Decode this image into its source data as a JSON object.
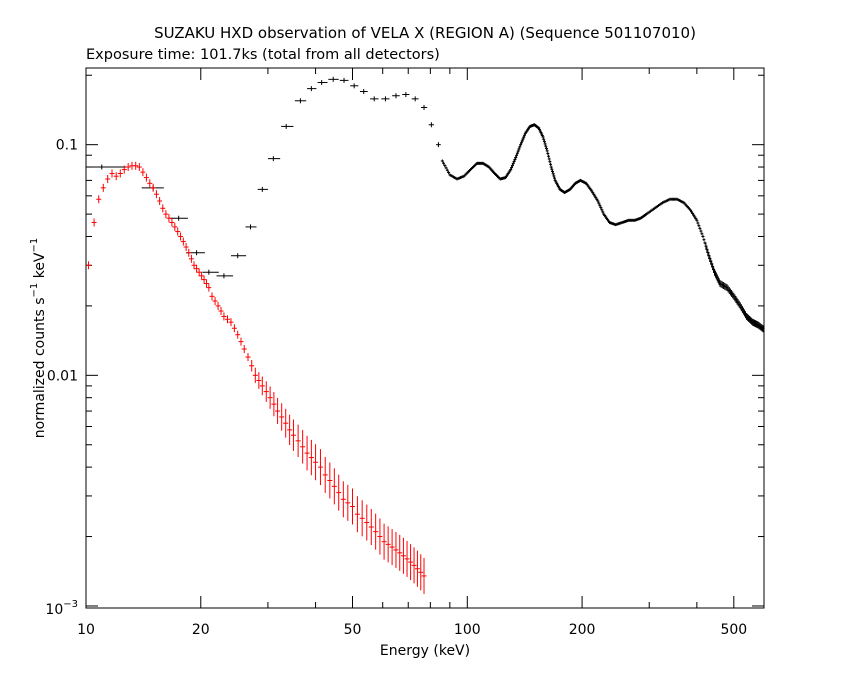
{
  "chart_data": {
    "type": "scatter",
    "title": "SUZAKU HXD observation of VELA X (REGION A) (Sequence 501107010)",
    "subtitle": "Exposure time: 101.7ks (total from all detectors)",
    "xlabel": "Energy (keV)",
    "ylabel_main": "normalized counts s",
    "ylabel_exp1": "−1",
    "ylabel_mid": " keV",
    "ylabel_exp2": "−1",
    "x_scale": "log",
    "y_scale": "log",
    "xlim": [
      10,
      600
    ],
    "ylim": [
      0.00098,
      0.215
    ],
    "x_ticks": [
      {
        "value": 10,
        "label": "10"
      },
      {
        "value": 20,
        "label": "20"
      },
      {
        "value": 50,
        "label": "50"
      },
      {
        "value": 100,
        "label": "100"
      },
      {
        "value": 200,
        "label": "200"
      },
      {
        "value": 500,
        "label": "500"
      }
    ],
    "y_ticks": [
      {
        "value": 0.1,
        "label": "0.1"
      },
      {
        "value": 0.01,
        "label": "0.01"
      }
    ],
    "y_tick_bottom": {
      "value": 0.001,
      "base": "10",
      "exp": "−3"
    },
    "grid": false,
    "legend": "none",
    "series": [
      {
        "color": "#000000",
        "points": [
          {
            "x": 11.0,
            "y": 0.08,
            "xerr": [
              10.0,
              12.8
            ]
          },
          {
            "x": 15.0,
            "y": 0.065,
            "xerr": [
              14.0,
              16.0
            ]
          },
          {
            "x": 17.5,
            "y": 0.048,
            "xerr": [
              16.5,
              18.5
            ]
          },
          {
            "x": 19.5,
            "y": 0.034,
            "xerr": [
              18.3,
              20.5
            ]
          },
          {
            "x": 21.0,
            "y": 0.028,
            "xerr": [
              20.2,
              22.3
            ]
          },
          {
            "x": 23.0,
            "y": 0.027,
            "xerr": [
              22.0,
              24.3
            ]
          },
          {
            "x": 25.0,
            "y": 0.033,
            "xerr": [
              24.0,
              26.3
            ]
          },
          {
            "x": 27.0,
            "y": 0.044,
            "xerr": [
              26.2,
              28.0
            ]
          },
          {
            "x": 29.0,
            "y": 0.064,
            "xerr": [
              28.2,
              30.0
            ]
          },
          {
            "x": 31.0,
            "y": 0.087,
            "xerr": [
              30.0,
              32.3
            ]
          },
          {
            "x": 33.5,
            "y": 0.12,
            "xerr": [
              32.5,
              35.0
            ]
          },
          {
            "x": 36.5,
            "y": 0.155,
            "xerr": [
              35.3,
              37.8
            ]
          },
          {
            "x": 39.0,
            "y": 0.175,
            "xerr": [
              38.0,
              40.2
            ]
          },
          {
            "x": 41.5,
            "y": 0.186,
            "xerr": [
              40.5,
              43.0
            ]
          },
          {
            "x": 44.5,
            "y": 0.192,
            "xerr": [
              43.2,
              46.0
            ]
          },
          {
            "x": 47.5,
            "y": 0.19,
            "xerr": [
              46.3,
              48.8
            ]
          },
          {
            "x": 50.5,
            "y": 0.18,
            "xerr": [
              49.3,
              51.8
            ]
          },
          {
            "x": 53.5,
            "y": 0.17,
            "xerr": [
              52.3,
              54.8
            ]
          },
          {
            "x": 57.0,
            "y": 0.158,
            "xerr": [
              55.6,
              58.5
            ]
          },
          {
            "x": 61.0,
            "y": 0.158,
            "xerr": [
              59.5,
              62.5
            ]
          },
          {
            "x": 65.0,
            "y": 0.163,
            "xerr": [
              63.5,
              66.5
            ]
          },
          {
            "x": 69.0,
            "y": 0.165,
            "xerr": [
              67.5,
              70.5
            ]
          },
          {
            "x": 73.0,
            "y": 0.158,
            "xerr": [
              71.5,
              74.5
            ]
          },
          {
            "x": 77.0,
            "y": 0.145,
            "xerr": [
              75.6,
              78.5
            ]
          },
          {
            "x": 80.5,
            "y": 0.122,
            "xerr": [
              79.2,
              81.8
            ]
          },
          {
            "x": 84.0,
            "y": 0.1,
            "xerr": [
              82.8,
              85.2
            ]
          }
        ],
        "curve": [
          [
            86,
            0.085
          ],
          [
            90,
            0.074
          ],
          [
            94,
            0.071
          ],
          [
            98,
            0.073
          ],
          [
            102,
            0.078
          ],
          [
            106,
            0.083
          ],
          [
            110,
            0.083
          ],
          [
            114,
            0.08
          ],
          [
            118,
            0.075
          ],
          [
            122,
            0.071
          ],
          [
            126,
            0.072
          ],
          [
            130,
            0.078
          ],
          [
            134,
            0.088
          ],
          [
            138,
            0.1
          ],
          [
            142,
            0.112
          ],
          [
            146,
            0.12
          ],
          [
            150,
            0.122
          ],
          [
            154,
            0.118
          ],
          [
            158,
            0.108
          ],
          [
            162,
            0.094
          ],
          [
            166,
            0.08
          ],
          [
            170,
            0.07
          ],
          [
            175,
            0.064
          ],
          [
            180,
            0.062
          ],
          [
            186,
            0.064
          ],
          [
            192,
            0.068
          ],
          [
            198,
            0.07
          ],
          [
            205,
            0.068
          ],
          [
            212,
            0.063
          ],
          [
            220,
            0.057
          ],
          [
            228,
            0.05
          ],
          [
            236,
            0.046
          ],
          [
            245,
            0.045
          ],
          [
            255,
            0.046
          ],
          [
            265,
            0.047
          ],
          [
            275,
            0.047
          ],
          [
            285,
            0.048
          ],
          [
            295,
            0.05
          ],
          [
            310,
            0.053
          ],
          [
            325,
            0.056
          ],
          [
            340,
            0.058
          ],
          [
            355,
            0.058
          ],
          [
            370,
            0.056
          ],
          [
            385,
            0.052
          ],
          [
            400,
            0.047
          ],
          [
            415,
            0.04
          ],
          [
            430,
            0.033
          ],
          [
            445,
            0.028
          ],
          [
            460,
            0.025
          ],
          [
            480,
            0.024
          ],
          [
            500,
            0.022
          ],
          [
            520,
            0.02
          ],
          [
            540,
            0.018
          ],
          [
            560,
            0.017
          ],
          [
            580,
            0.0165
          ],
          [
            600,
            0.0158
          ]
        ]
      },
      {
        "color": "#ff0000",
        "points": [
          {
            "x": 10.15,
            "y": 0.03
          },
          {
            "x": 10.5,
            "y": 0.046
          },
          {
            "x": 10.8,
            "y": 0.058
          },
          {
            "x": 11.1,
            "y": 0.065
          },
          {
            "x": 11.4,
            "y": 0.071
          },
          {
            "x": 11.7,
            "y": 0.075
          },
          {
            "x": 12.0,
            "y": 0.073
          },
          {
            "x": 12.3,
            "y": 0.075
          },
          {
            "x": 12.6,
            "y": 0.078
          },
          {
            "x": 12.9,
            "y": 0.08
          },
          {
            "x": 13.2,
            "y": 0.081
          },
          {
            "x": 13.5,
            "y": 0.081
          },
          {
            "x": 13.8,
            "y": 0.08
          },
          {
            "x": 14.1,
            "y": 0.076
          },
          {
            "x": 14.4,
            "y": 0.072
          },
          {
            "x": 14.7,
            "y": 0.068
          },
          {
            "x": 15.0,
            "y": 0.065
          },
          {
            "x": 15.3,
            "y": 0.061
          },
          {
            "x": 15.6,
            "y": 0.057
          },
          {
            "x": 15.9,
            "y": 0.053
          },
          {
            "x": 16.2,
            "y": 0.05
          },
          {
            "x": 16.5,
            "y": 0.048
          },
          {
            "x": 16.8,
            "y": 0.046
          },
          {
            "x": 17.1,
            "y": 0.044
          },
          {
            "x": 17.4,
            "y": 0.042
          },
          {
            "x": 17.7,
            "y": 0.04
          },
          {
            "x": 18.0,
            "y": 0.038
          },
          {
            "x": 18.3,
            "y": 0.036
          },
          {
            "x": 18.6,
            "y": 0.034
          },
          {
            "x": 18.9,
            "y": 0.032
          },
          {
            "x": 19.2,
            "y": 0.03
          },
          {
            "x": 19.5,
            "y": 0.029
          },
          {
            "x": 19.8,
            "y": 0.028
          },
          {
            "x": 20.1,
            "y": 0.027
          },
          {
            "x": 20.4,
            "y": 0.026
          },
          {
            "x": 20.7,
            "y": 0.025
          },
          {
            "x": 21.0,
            "y": 0.024
          },
          {
            "x": 21.4,
            "y": 0.022
          },
          {
            "x": 21.8,
            "y": 0.021
          },
          {
            "x": 22.2,
            "y": 0.02
          },
          {
            "x": 22.6,
            "y": 0.019
          },
          {
            "x": 23.0,
            "y": 0.018
          },
          {
            "x": 23.5,
            "y": 0.0175
          },
          {
            "x": 24.0,
            "y": 0.017
          },
          {
            "x": 24.5,
            "y": 0.016
          },
          {
            "x": 25.0,
            "y": 0.015
          },
          {
            "x": 25.5,
            "y": 0.014
          },
          {
            "x": 26.0,
            "y": 0.013
          },
          {
            "x": 26.6,
            "y": 0.012
          },
          {
            "x": 27.2,
            "y": 0.011
          },
          {
            "x": 27.8,
            "y": 0.01
          },
          {
            "x": 28.4,
            "y": 0.0095
          },
          {
            "x": 29.0,
            "y": 0.009
          },
          {
            "x": 29.7,
            "y": 0.0085
          },
          {
            "x": 30.4,
            "y": 0.008
          },
          {
            "x": 31.1,
            "y": 0.0075
          },
          {
            "x": 31.8,
            "y": 0.007
          },
          {
            "x": 32.6,
            "y": 0.0066
          },
          {
            "x": 33.4,
            "y": 0.0062
          },
          {
            "x": 34.2,
            "y": 0.0058
          },
          {
            "x": 35.0,
            "y": 0.0055
          },
          {
            "x": 36.0,
            "y": 0.0052
          },
          {
            "x": 37.0,
            "y": 0.0049
          },
          {
            "x": 38.0,
            "y": 0.0046
          },
          {
            "x": 39.0,
            "y": 0.0044
          },
          {
            "x": 40.0,
            "y": 0.0042
          },
          {
            "x": 41.2,
            "y": 0.004
          },
          {
            "x": 42.4,
            "y": 0.0037
          },
          {
            "x": 43.6,
            "y": 0.0035
          },
          {
            "x": 44.8,
            "y": 0.0033
          },
          {
            "x": 46.0,
            "y": 0.0031
          },
          {
            "x": 47.3,
            "y": 0.0029
          },
          {
            "x": 48.6,
            "y": 0.0028
          },
          {
            "x": 50.0,
            "y": 0.0027
          },
          {
            "x": 51.5,
            "y": 0.0025
          },
          {
            "x": 53.0,
            "y": 0.0024
          },
          {
            "x": 54.5,
            "y": 0.0023
          },
          {
            "x": 56.0,
            "y": 0.0022
          },
          {
            "x": 57.5,
            "y": 0.0021
          },
          {
            "x": 59.0,
            "y": 0.002
          },
          {
            "x": 60.5,
            "y": 0.0019
          },
          {
            "x": 62.0,
            "y": 0.00185
          },
          {
            "x": 63.5,
            "y": 0.0018
          },
          {
            "x": 65.0,
            "y": 0.00175
          },
          {
            "x": 66.5,
            "y": 0.0017
          },
          {
            "x": 68.0,
            "y": 0.00165
          },
          {
            "x": 69.5,
            "y": 0.0016
          },
          {
            "x": 71.0,
            "y": 0.00155
          },
          {
            "x": 72.5,
            "y": 0.0015
          },
          {
            "x": 74.0,
            "y": 0.00145
          },
          {
            "x": 75.5,
            "y": 0.0014
          },
          {
            "x": 77.0,
            "y": 0.00135
          }
        ]
      }
    ]
  }
}
